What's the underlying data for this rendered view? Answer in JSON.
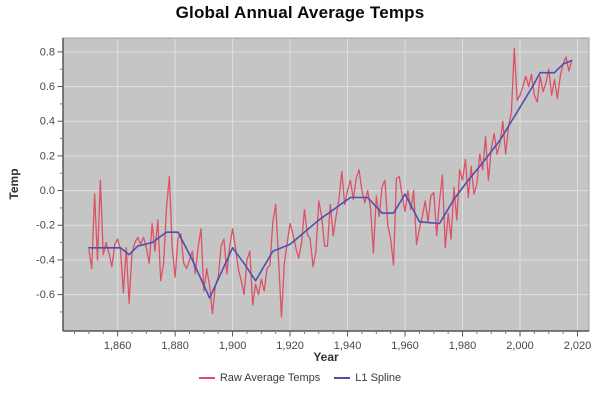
{
  "chart": {
    "title": "Global Annual Average Temps",
    "xlabel": "Year",
    "ylabel": "Temp"
  },
  "legend": {
    "items": [
      {
        "label": "Raw Average Temps",
        "color": "#dd5166"
      },
      {
        "label": "L1 Spline",
        "color": "#4e4fae"
      }
    ]
  },
  "colors": {
    "plot_bg": "#c5c5c5",
    "grid": "#dfdfdf",
    "border": "#a0a0a0",
    "axis": "#555555",
    "minor_tick": "#7a7a7a",
    "tick_label": "#474747",
    "raw": "#dd5166",
    "spline": "#4e4fae"
  },
  "chart_data": {
    "type": "line",
    "title": "Global Annual Average Temps",
    "xlabel": "Year",
    "ylabel": "Temp",
    "xlim": [
      1841,
      2024
    ],
    "ylim": [
      -0.81,
      0.88
    ],
    "grid": true,
    "legend_position": "bottom",
    "x_ticks": {
      "values": [
        1860,
        1880,
        1900,
        1920,
        1940,
        1960,
        1980,
        2000,
        2020
      ],
      "labels": [
        "1,860",
        "1,880",
        "1,900",
        "1,920",
        "1,940",
        "1,960",
        "1,980",
        "2,000",
        "2,020"
      ]
    },
    "y_ticks": {
      "values": [
        0.8,
        0.6,
        0.4,
        0.2,
        0.0,
        -0.2,
        -0.4,
        -0.6
      ],
      "labels": [
        "0.8",
        "0.6",
        "0.4",
        "0.2",
        "0.0",
        "-0.2",
        "-0.4",
        "-0.6"
      ]
    },
    "x_minor_step": 5,
    "y_minor_step": 0.1,
    "x": [
      1850,
      1851,
      1852,
      1853,
      1854,
      1855,
      1856,
      1857,
      1858,
      1859,
      1860,
      1861,
      1862,
      1863,
      1864,
      1865,
      1866,
      1867,
      1868,
      1869,
      1870,
      1871,
      1872,
      1873,
      1874,
      1875,
      1876,
      1877,
      1878,
      1879,
      1880,
      1881,
      1882,
      1883,
      1884,
      1885,
      1886,
      1887,
      1888,
      1889,
      1890,
      1891,
      1892,
      1893,
      1894,
      1895,
      1896,
      1897,
      1898,
      1899,
      1900,
      1901,
      1902,
      1903,
      1904,
      1905,
      1906,
      1907,
      1908,
      1909,
      1910,
      1911,
      1912,
      1913,
      1914,
      1915,
      1916,
      1917,
      1918,
      1919,
      1920,
      1921,
      1922,
      1923,
      1924,
      1925,
      1926,
      1927,
      1928,
      1929,
      1930,
      1931,
      1932,
      1933,
      1934,
      1935,
      1936,
      1937,
      1938,
      1939,
      1940,
      1941,
      1942,
      1943,
      1944,
      1945,
      1946,
      1947,
      1948,
      1949,
      1950,
      1951,
      1952,
      1953,
      1954,
      1955,
      1956,
      1957,
      1958,
      1959,
      1960,
      1961,
      1962,
      1963,
      1964,
      1965,
      1966,
      1967,
      1968,
      1969,
      1970,
      1971,
      1972,
      1973,
      1974,
      1975,
      1976,
      1977,
      1978,
      1979,
      1980,
      1981,
      1982,
      1983,
      1984,
      1985,
      1986,
      1987,
      1988,
      1989,
      1990,
      1991,
      1992,
      1993,
      1994,
      1995,
      1996,
      1997,
      1998,
      1999,
      2000,
      2001,
      2002,
      2003,
      2004,
      2005,
      2006,
      2007,
      2008,
      2009,
      2010,
      2011,
      2012,
      2013,
      2014,
      2015,
      2016,
      2017,
      2018
    ],
    "series": [
      {
        "name": "Raw Average Temps",
        "color": "#dd5166",
        "width": 1.3,
        "values": [
          -0.34,
          -0.45,
          -0.02,
          -0.4,
          0.06,
          -0.37,
          -0.3,
          -0.36,
          -0.44,
          -0.31,
          -0.28,
          -0.34,
          -0.59,
          -0.33,
          -0.65,
          -0.36,
          -0.3,
          -0.27,
          -0.31,
          -0.27,
          -0.33,
          -0.42,
          -0.19,
          -0.35,
          -0.17,
          -0.52,
          -0.42,
          -0.1,
          0.08,
          -0.33,
          -0.5,
          -0.28,
          -0.25,
          -0.42,
          -0.45,
          -0.4,
          -0.35,
          -0.48,
          -0.33,
          -0.22,
          -0.58,
          -0.45,
          -0.55,
          -0.71,
          -0.55,
          -0.5,
          -0.32,
          -0.28,
          -0.48,
          -0.32,
          -0.22,
          -0.33,
          -0.45,
          -0.52,
          -0.6,
          -0.4,
          -0.35,
          -0.66,
          -0.54,
          -0.6,
          -0.51,
          -0.58,
          -0.45,
          -0.43,
          -0.18,
          -0.08,
          -0.4,
          -0.73,
          -0.42,
          -0.3,
          -0.19,
          -0.25,
          -0.33,
          -0.39,
          -0.3,
          -0.11,
          -0.25,
          -0.28,
          -0.44,
          -0.35,
          -0.06,
          -0.15,
          -0.32,
          -0.32,
          -0.08,
          -0.26,
          -0.15,
          -0.05,
          0.11,
          -0.08,
          0.0,
          0.06,
          -0.05,
          0.07,
          0.12,
          0.0,
          -0.07,
          0.0,
          -0.1,
          -0.36,
          -0.03,
          -0.15,
          0.02,
          0.06,
          -0.2,
          -0.28,
          -0.43,
          0.07,
          0.08,
          -0.03,
          -0.12,
          0.0,
          -0.11,
          0.0,
          -0.31,
          -0.22,
          -0.15,
          -0.06,
          -0.18,
          -0.03,
          -0.01,
          -0.26,
          -0.06,
          0.09,
          -0.33,
          -0.13,
          -0.28,
          0.02,
          -0.17,
          0.12,
          0.06,
          0.18,
          -0.04,
          0.14,
          -0.02,
          0.04,
          0.21,
          0.12,
          0.31,
          0.06,
          0.24,
          0.33,
          0.21,
          0.27,
          0.4,
          0.21,
          0.37,
          0.45,
          0.82,
          0.52,
          0.55,
          0.6,
          0.66,
          0.6,
          0.67,
          0.55,
          0.51,
          0.66,
          0.57,
          0.62,
          0.7,
          0.55,
          0.64,
          0.53,
          0.66,
          0.73,
          0.77,
          0.69,
          0.75
        ]
      },
      {
        "name": "L1 Spline",
        "color": "#4e4fae",
        "width": 1.6,
        "values": [
          -0.33,
          -0.33,
          -0.33,
          -0.33,
          -0.33,
          -0.33,
          -0.33,
          -0.33,
          -0.33,
          -0.33,
          -0.33,
          -0.33,
          -0.343,
          -0.357,
          -0.37,
          -0.353,
          -0.337,
          -0.32,
          -0.316,
          -0.312,
          -0.308,
          -0.304,
          -0.3,
          -0.288,
          -0.276,
          -0.264,
          -0.252,
          -0.24,
          -0.24,
          -0.24,
          -0.24,
          -0.24,
          -0.272,
          -0.304,
          -0.336,
          -0.368,
          -0.4,
          -0.437,
          -0.473,
          -0.51,
          -0.547,
          -0.583,
          -0.62,
          -0.584,
          -0.548,
          -0.511,
          -0.475,
          -0.439,
          -0.403,
          -0.366,
          -0.33,
          -0.353,
          -0.375,
          -0.398,
          -0.42,
          -0.445,
          -0.47,
          -0.495,
          -0.52,
          -0.492,
          -0.463,
          -0.435,
          -0.407,
          -0.378,
          -0.35,
          -0.343,
          -0.337,
          -0.33,
          -0.323,
          -0.317,
          -0.31,
          -0.296,
          -0.282,
          -0.268,
          -0.254,
          -0.24,
          -0.226,
          -0.212,
          -0.198,
          -0.184,
          -0.17,
          -0.158,
          -0.146,
          -0.135,
          -0.123,
          -0.111,
          -0.099,
          -0.087,
          -0.075,
          -0.064,
          -0.052,
          -0.04,
          -0.04,
          -0.04,
          -0.04,
          -0.04,
          -0.04,
          -0.04,
          -0.058,
          -0.076,
          -0.094,
          -0.112,
          -0.13,
          -0.13,
          -0.13,
          -0.13,
          -0.13,
          -0.103,
          -0.075,
          -0.048,
          -0.02,
          -0.052,
          -0.084,
          -0.116,
          -0.148,
          -0.18,
          -0.181,
          -0.183,
          -0.184,
          -0.186,
          -0.187,
          -0.189,
          -0.19,
          -0.162,
          -0.134,
          -0.106,
          -0.078,
          -0.05,
          -0.028,
          -0.006,
          0.016,
          0.038,
          0.06,
          0.08,
          0.1,
          0.12,
          0.14,
          0.16,
          0.182,
          0.203,
          0.225,
          0.247,
          0.268,
          0.29,
          0.317,
          0.344,
          0.371,
          0.399,
          0.426,
          0.453,
          0.48,
          0.508,
          0.535,
          0.563,
          0.59,
          0.62,
          0.65,
          0.68,
          0.68,
          0.68,
          0.68,
          0.68,
          0.68,
          0.697,
          0.713,
          0.73,
          0.737,
          0.743,
          0.75
        ]
      }
    ]
  }
}
